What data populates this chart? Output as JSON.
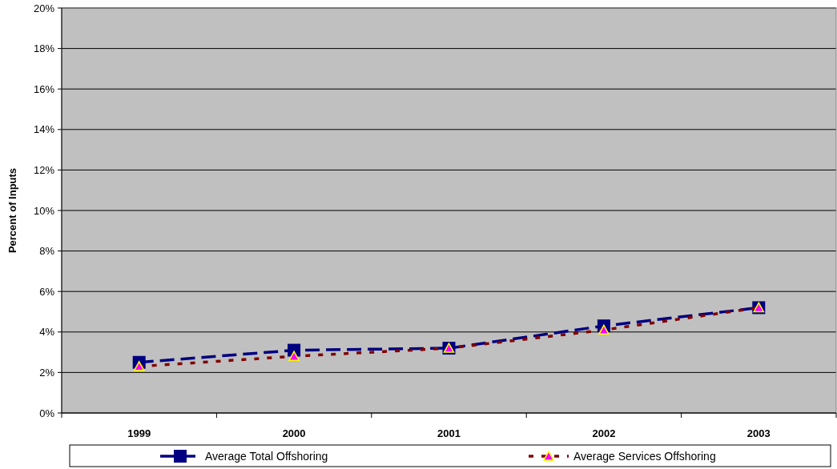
{
  "chart_data": {
    "type": "line",
    "ylabel": "Percent of Inputs",
    "categories": [
      "1999",
      "2000",
      "2001",
      "2002",
      "2003"
    ],
    "ylim": [
      0,
      20
    ],
    "yticks": [
      {
        "value": 0,
        "label": "0%"
      },
      {
        "value": 2,
        "label": "2%"
      },
      {
        "value": 4,
        "label": "4%"
      },
      {
        "value": 6,
        "label": "6%"
      },
      {
        "value": 8,
        "label": "8%"
      },
      {
        "value": 10,
        "label": "10%"
      },
      {
        "value": 12,
        "label": "12%"
      },
      {
        "value": 14,
        "label": "14%"
      },
      {
        "value": 16,
        "label": "16%"
      },
      {
        "value": 18,
        "label": "18%"
      },
      {
        "value": 20,
        "label": "20%"
      }
    ],
    "grid": "y",
    "legend": "bottom",
    "series": [
      {
        "name": "Average Total Offshoring",
        "color": "#000080",
        "values": [
          2.5,
          3.1,
          3.2,
          4.3,
          5.2
        ],
        "marker": "square",
        "line_style": "dashed"
      },
      {
        "name": "Average Services Offshoring",
        "color": "#800000",
        "values": [
          2.3,
          2.8,
          3.2,
          4.1,
          5.2
        ],
        "marker": "triangle",
        "line_style": "dotted"
      }
    ]
  }
}
